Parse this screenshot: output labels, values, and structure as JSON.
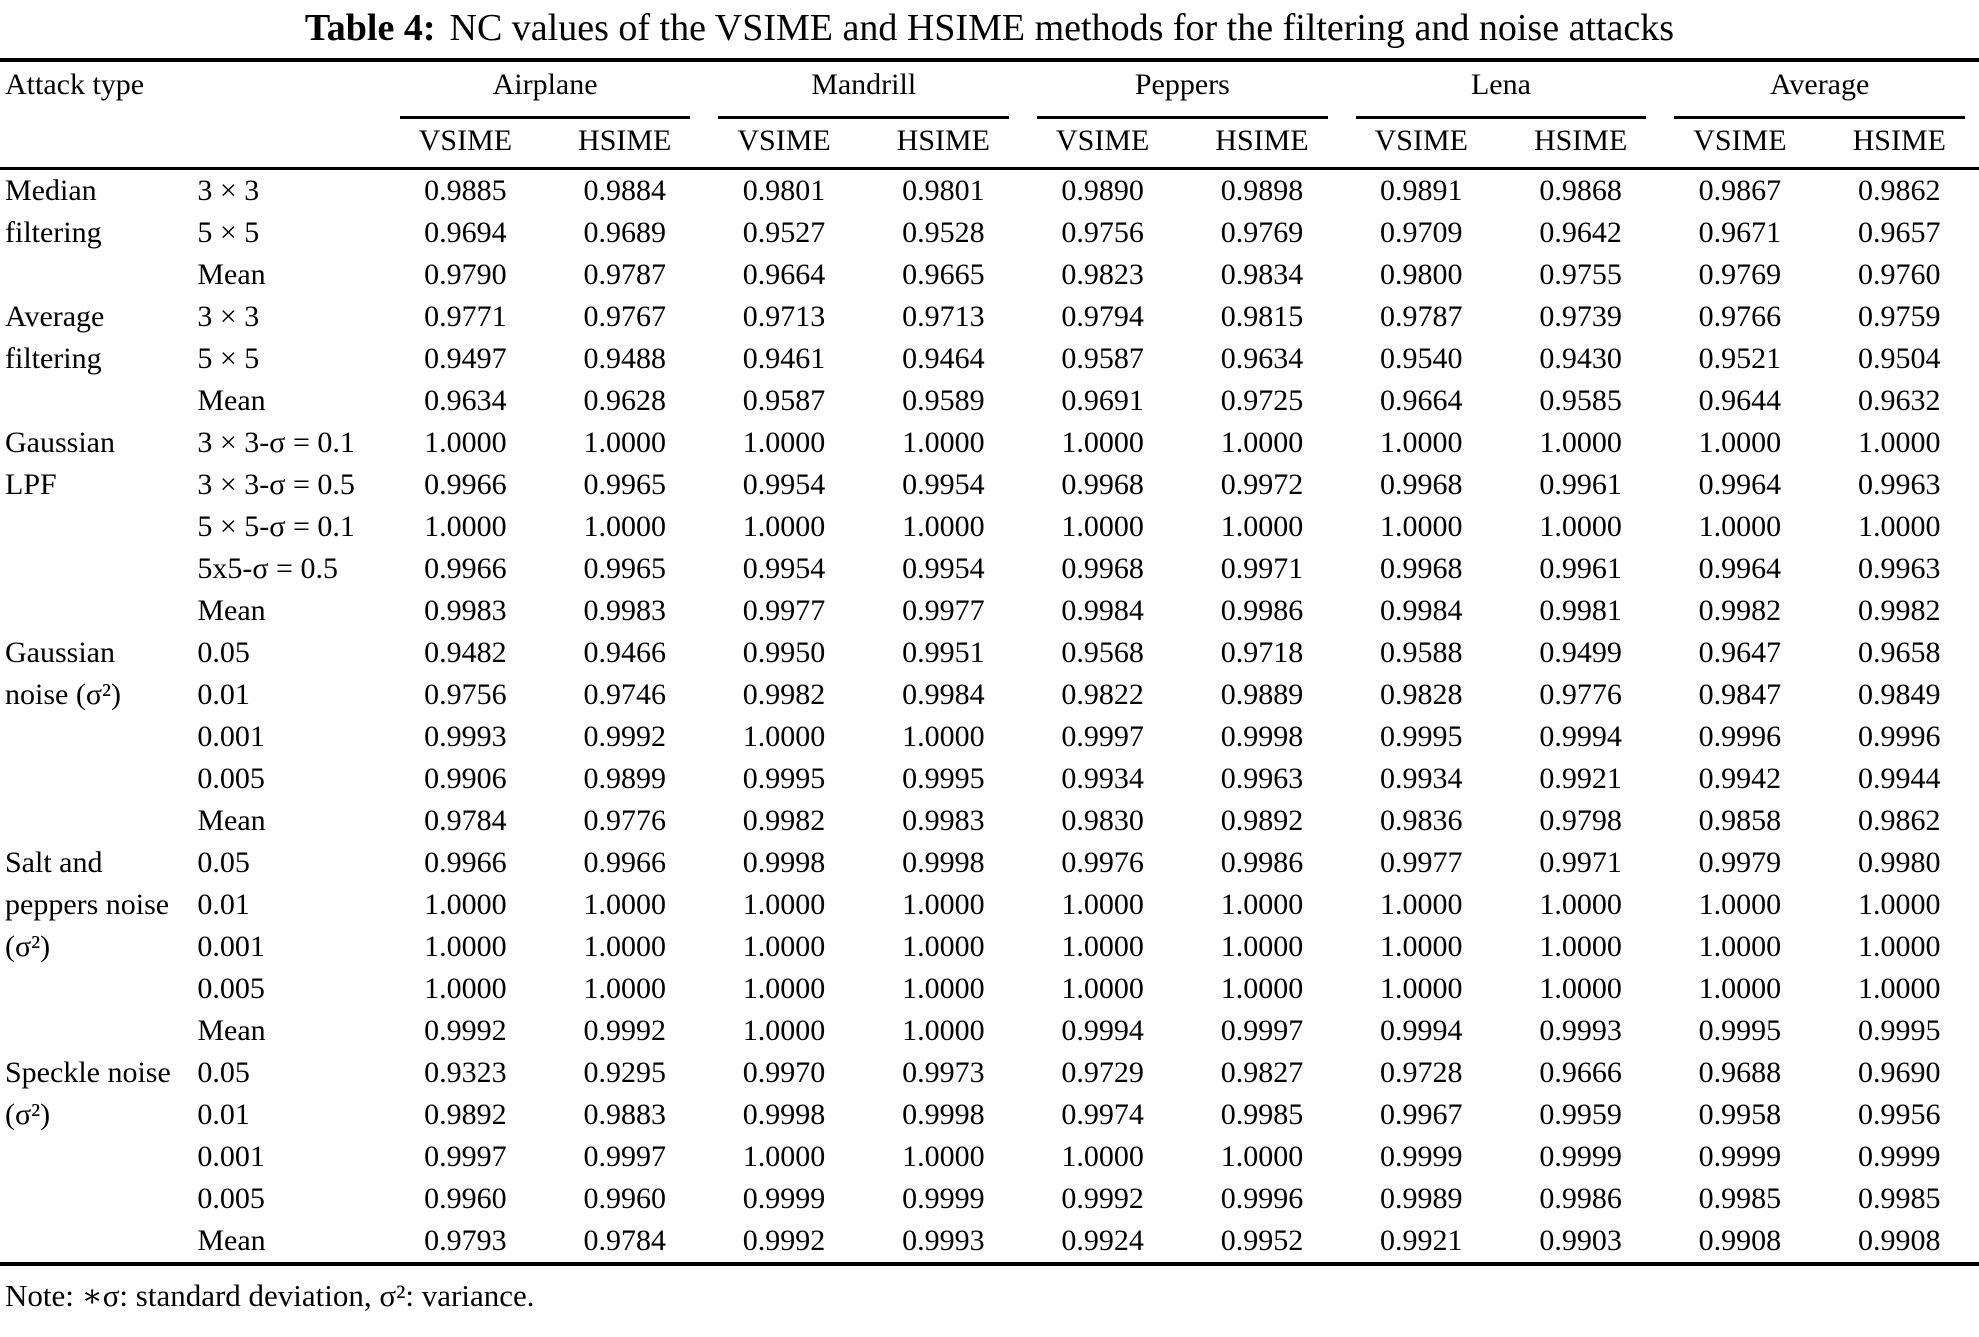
{
  "title": {
    "label": "Table 4:",
    "text": "NC values of the VSIME and HSIME methods for the filtering and noise attacks"
  },
  "table": {
    "row_header": "Attack type",
    "groups": [
      "Airplane",
      "Mandrill",
      "Peppers",
      "Lena",
      "Average"
    ],
    "subcolumns": [
      "VSIME",
      "HSIME"
    ],
    "rows": [
      {
        "attack": "Median",
        "param": "3 × 3",
        "values": [
          "0.9885",
          "0.9884",
          "0.9801",
          "0.9801",
          "0.9890",
          "0.9898",
          "0.9891",
          "0.9868",
          "0.9867",
          "0.9862"
        ]
      },
      {
        "attack": "filtering",
        "param": "5 × 5",
        "values": [
          "0.9694",
          "0.9689",
          "0.9527",
          "0.9528",
          "0.9756",
          "0.9769",
          "0.9709",
          "0.9642",
          "0.9671",
          "0.9657"
        ]
      },
      {
        "attack": "",
        "param": "Mean",
        "values": [
          "0.9790",
          "0.9787",
          "0.9664",
          "0.9665",
          "0.9823",
          "0.9834",
          "0.9800",
          "0.9755",
          "0.9769",
          "0.9760"
        ]
      },
      {
        "attack": "Average",
        "param": "3 × 3",
        "values": [
          "0.9771",
          "0.9767",
          "0.9713",
          "0.9713",
          "0.9794",
          "0.9815",
          "0.9787",
          "0.9739",
          "0.9766",
          "0.9759"
        ]
      },
      {
        "attack": "filtering",
        "param": "5 × 5",
        "values": [
          "0.9497",
          "0.9488",
          "0.9461",
          "0.9464",
          "0.9587",
          "0.9634",
          "0.9540",
          "0.9430",
          "0.9521",
          "0.9504"
        ]
      },
      {
        "attack": "",
        "param": "Mean",
        "values": [
          "0.9634",
          "0.9628",
          "0.9587",
          "0.9589",
          "0.9691",
          "0.9725",
          "0.9664",
          "0.9585",
          "0.9644",
          "0.9632"
        ]
      },
      {
        "attack": "Gaussian",
        "param": "3 × 3-σ = 0.1",
        "values": [
          "1.0000",
          "1.0000",
          "1.0000",
          "1.0000",
          "1.0000",
          "1.0000",
          "1.0000",
          "1.0000",
          "1.0000",
          "1.0000"
        ]
      },
      {
        "attack": "LPF",
        "param": "3 × 3-σ = 0.5",
        "values": [
          "0.9966",
          "0.9965",
          "0.9954",
          "0.9954",
          "0.9968",
          "0.9972",
          "0.9968",
          "0.9961",
          "0.9964",
          "0.9963"
        ]
      },
      {
        "attack": "",
        "param": "5 × 5-σ = 0.1",
        "values": [
          "1.0000",
          "1.0000",
          "1.0000",
          "1.0000",
          "1.0000",
          "1.0000",
          "1.0000",
          "1.0000",
          "1.0000",
          "1.0000"
        ]
      },
      {
        "attack": "",
        "param": "5x5-σ = 0.5",
        "values": [
          "0.9966",
          "0.9965",
          "0.9954",
          "0.9954",
          "0.9968",
          "0.9971",
          "0.9968",
          "0.9961",
          "0.9964",
          "0.9963"
        ]
      },
      {
        "attack": "",
        "param": "Mean",
        "values": [
          "0.9983",
          "0.9983",
          "0.9977",
          "0.9977",
          "0.9984",
          "0.9986",
          "0.9984",
          "0.9981",
          "0.9982",
          "0.9982"
        ]
      },
      {
        "attack": "Gaussian",
        "param": "0.05",
        "values": [
          "0.9482",
          "0.9466",
          "0.9950",
          "0.9951",
          "0.9568",
          "0.9718",
          "0.9588",
          "0.9499",
          "0.9647",
          "0.9658"
        ]
      },
      {
        "attack": "noise (σ²)",
        "param": "0.01",
        "values": [
          "0.9756",
          "0.9746",
          "0.9982",
          "0.9984",
          "0.9822",
          "0.9889",
          "0.9828",
          "0.9776",
          "0.9847",
          "0.9849"
        ]
      },
      {
        "attack": "",
        "param": "0.001",
        "values": [
          "0.9993",
          "0.9992",
          "1.0000",
          "1.0000",
          "0.9997",
          "0.9998",
          "0.9995",
          "0.9994",
          "0.9996",
          "0.9996"
        ]
      },
      {
        "attack": "",
        "param": "0.005",
        "values": [
          "0.9906",
          "0.9899",
          "0.9995",
          "0.9995",
          "0.9934",
          "0.9963",
          "0.9934",
          "0.9921",
          "0.9942",
          "0.9944"
        ]
      },
      {
        "attack": "",
        "param": "Mean",
        "values": [
          "0.9784",
          "0.9776",
          "0.9982",
          "0.9983",
          "0.9830",
          "0.9892",
          "0.9836",
          "0.9798",
          "0.9858",
          "0.9862"
        ]
      },
      {
        "attack": "Salt and",
        "param": "0.05",
        "values": [
          "0.9966",
          "0.9966",
          "0.9998",
          "0.9998",
          "0.9976",
          "0.9986",
          "0.9977",
          "0.9971",
          "0.9979",
          "0.9980"
        ]
      },
      {
        "attack": "peppers noise",
        "param": "0.01",
        "values": [
          "1.0000",
          "1.0000",
          "1.0000",
          "1.0000",
          "1.0000",
          "1.0000",
          "1.0000",
          "1.0000",
          "1.0000",
          "1.0000"
        ]
      },
      {
        "attack": "(σ²)",
        "param": "0.001",
        "values": [
          "1.0000",
          "1.0000",
          "1.0000",
          "1.0000",
          "1.0000",
          "1.0000",
          "1.0000",
          "1.0000",
          "1.0000",
          "1.0000"
        ]
      },
      {
        "attack": "",
        "param": "0.005",
        "values": [
          "1.0000",
          "1.0000",
          "1.0000",
          "1.0000",
          "1.0000",
          "1.0000",
          "1.0000",
          "1.0000",
          "1.0000",
          "1.0000"
        ]
      },
      {
        "attack": "",
        "param": "Mean",
        "values": [
          "0.9992",
          "0.9992",
          "1.0000",
          "1.0000",
          "0.9994",
          "0.9997",
          "0.9994",
          "0.9993",
          "0.9995",
          "0.9995"
        ]
      },
      {
        "attack": "Speckle noise",
        "param": "0.05",
        "values": [
          "0.9323",
          "0.9295",
          "0.9970",
          "0.9973",
          "0.9729",
          "0.9827",
          "0.9728",
          "0.9666",
          "0.9688",
          "0.9690"
        ]
      },
      {
        "attack": "(σ²)",
        "param": "0.01",
        "values": [
          "0.9892",
          "0.9883",
          "0.9998",
          "0.9998",
          "0.9974",
          "0.9985",
          "0.9967",
          "0.9959",
          "0.9958",
          "0.9956"
        ]
      },
      {
        "attack": "",
        "param": "0.001",
        "values": [
          "0.9997",
          "0.9997",
          "1.0000",
          "1.0000",
          "1.0000",
          "1.0000",
          "0.9999",
          "0.9999",
          "0.9999",
          "0.9999"
        ]
      },
      {
        "attack": "",
        "param": "0.005",
        "values": [
          "0.9960",
          "0.9960",
          "0.9999",
          "0.9999",
          "0.9992",
          "0.9996",
          "0.9989",
          "0.9986",
          "0.9985",
          "0.9985"
        ]
      },
      {
        "attack": "",
        "param": "Mean",
        "values": [
          "0.9793",
          "0.9784",
          "0.9992",
          "0.9993",
          "0.9924",
          "0.9952",
          "0.9921",
          "0.9903",
          "0.9908",
          "0.9908"
        ]
      }
    ]
  },
  "note": "Note: ∗σ: standard deviation, σ²: variance."
}
